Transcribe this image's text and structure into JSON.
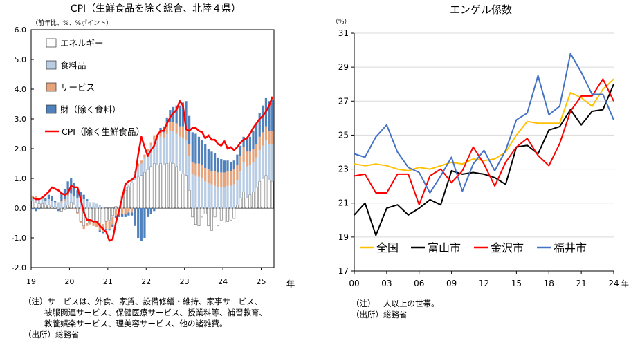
{
  "left": {
    "title": "CPI（生鮮食品を除く総合、北陸４県）",
    "unit": "（前年比、%、%ポイント）",
    "ylim": [
      -2.0,
      6.0
    ],
    "yticks": [
      "6.0",
      "5.0",
      "4.0",
      "3.0",
      "2.0",
      "1.0",
      "0.0",
      "-1.0",
      "-2.0"
    ],
    "xticks": [
      "19",
      "20",
      "21",
      "22",
      "23",
      "24",
      "25"
    ],
    "x_unit": "年",
    "legend": [
      "エネルギー",
      "食料品",
      "サービス",
      "財（除く食料）",
      "CPI（除く生鮮食品）"
    ],
    "notes": [
      "（注）サービスは、外食、家賃、設備修繕・維持、家事サービス、",
      "被服関連サービス、保健医療サービス、授業料等、補習教育、",
      "教養娯楽サービス、理美容サービス、他の諸雑費。",
      "（出所）総務省"
    ]
  },
  "right": {
    "title": "エンゲル係数",
    "unit": "（%）",
    "ylim": [
      17,
      31
    ],
    "yticks": [
      "31",
      "29",
      "27",
      "25",
      "23",
      "21",
      "19",
      "17"
    ],
    "xticks": [
      "00",
      "03",
      "06",
      "09",
      "12",
      "15",
      "18",
      "21",
      "24"
    ],
    "x_unit": "年",
    "notes": [
      "（注）二人以上の世帯。",
      "（出所）総務省"
    ]
  },
  "colors": {
    "energy": "#ffffff",
    "food": "#b8cce4",
    "service": "#e5a47c",
    "goods": "#4f81bd",
    "cpi": "#ff0000",
    "zenkoku": "#ffc000",
    "toyama": "#000000",
    "kanazawa": "#ff0000",
    "fukui": "#4472c4"
  },
  "chart_data": [
    {
      "type": "bar",
      "title": "CPI（生鮮食品を除く総合、北陸４県）",
      "ylabel": "（前年比、%、%ポイント）",
      "ylim": [
        -2.0,
        6.0
      ],
      "x_start": "2019-01",
      "period": "monthly",
      "stacked": true,
      "series": [
        {
          "name": "エネルギー",
          "values": [
            0.25,
            0.2,
            0.15,
            0.15,
            0.1,
            0.1,
            0.05,
            0.0,
            -0.05,
            -0.1,
            -0.05,
            0.1,
            0.2,
            0.1,
            -0.15,
            -0.45,
            -0.6,
            -0.5,
            -0.45,
            -0.45,
            -0.45,
            -0.5,
            -0.55,
            -0.45,
            -0.4,
            -0.25,
            0.05,
            0.25,
            0.4,
            0.6,
            0.7,
            0.85,
            0.95,
            1.05,
            1.1,
            1.2,
            1.3,
            1.4,
            1.5,
            1.45,
            1.5,
            1.45,
            1.5,
            1.55,
            1.5,
            1.4,
            1.25,
            1.15,
            1.1,
            0.6,
            -0.3,
            -0.55,
            -0.6,
            -0.3,
            -0.2,
            -0.6,
            -0.75,
            -0.3,
            -0.6,
            -0.4,
            -0.5,
            -0.45,
            -0.4,
            -0.35,
            0.1,
            0.35,
            0.55,
            0.35,
            0.45,
            0.55,
            0.7,
            0.9,
            1.0,
            1.1,
            0.95,
            0.9
          ]
        },
        {
          "name": "食料品",
          "values": [
            0.1,
            0.15,
            0.15,
            0.15,
            0.15,
            0.2,
            0.2,
            0.2,
            0.2,
            0.2,
            0.25,
            0.3,
            0.3,
            0.3,
            0.35,
            0.35,
            0.3,
            0.25,
            0.2,
            0.2,
            0.15,
            0.1,
            0.05,
            0.0,
            -0.05,
            -0.05,
            -0.05,
            0.0,
            0.05,
            0.1,
            0.1,
            0.15,
            0.25,
            0.35,
            0.4,
            0.5,
            0.6,
            0.7,
            0.8,
            0.85,
            0.9,
            0.9,
            1.0,
            1.05,
            1.1,
            1.1,
            1.15,
            1.2,
            1.2,
            1.15,
            1.15,
            1.1,
            1.05,
            1.0,
            0.9,
            0.85,
            0.8,
            0.75,
            0.7,
            0.7,
            0.7,
            0.75,
            0.75,
            0.8,
            0.85,
            0.9,
            1.0,
            1.05,
            1.0,
            1.0,
            1.0,
            1.05,
            1.1,
            1.2,
            1.2,
            1.25
          ]
        },
        {
          "name": "サービス",
          "values": [
            0.05,
            0.05,
            0.05,
            0.05,
            0.0,
            0.0,
            0.0,
            0.0,
            0.0,
            0.05,
            0.05,
            0.05,
            0.0,
            -0.05,
            -0.05,
            -0.05,
            -0.1,
            -0.1,
            -0.1,
            -0.15,
            -0.2,
            -0.25,
            -0.25,
            -0.25,
            -0.25,
            -0.25,
            -0.2,
            -0.2,
            -0.2,
            -0.2,
            -0.15,
            -0.15,
            0.05,
            0.1,
            0.1,
            0.1,
            0.1,
            0.1,
            0.15,
            0.15,
            0.2,
            0.2,
            0.25,
            0.3,
            0.3,
            0.35,
            0.35,
            0.4,
            0.4,
            0.4,
            0.4,
            0.4,
            0.45,
            0.45,
            0.45,
            0.45,
            0.45,
            0.5,
            0.5,
            0.5,
            0.5,
            0.5,
            0.5,
            0.5,
            0.5,
            0.5,
            0.5,
            0.5,
            0.45,
            0.45,
            0.45,
            0.45,
            0.45,
            0.45,
            0.45,
            0.45
          ]
        },
        {
          "name": "財（除く食料）",
          "values": [
            -0.05,
            -0.1,
            -0.05,
            0.05,
            0.1,
            0.15,
            0.15,
            0.05,
            -0.05,
            0.25,
            0.35,
            0.45,
            0.5,
            0.45,
            0.25,
            0.2,
            0.15,
            0.05,
            0.0,
            0.0,
            0.0,
            -0.05,
            -0.05,
            -0.05,
            -0.05,
            -0.1,
            -0.1,
            -0.1,
            -0.1,
            -0.1,
            -0.1,
            -0.1,
            -0.6,
            -1.0,
            -1.1,
            -1.0,
            -0.3,
            -0.2,
            -0.1,
            0.0,
            0.1,
            0.2,
            0.3,
            0.4,
            0.5,
            0.6,
            0.7,
            0.8,
            0.9,
            0.95,
            1.0,
            1.0,
            0.9,
            0.85,
            0.8,
            0.7,
            0.65,
            0.6,
            0.5,
            0.45,
            0.4,
            0.35,
            0.3,
            0.3,
            0.35,
            0.35,
            0.35,
            0.45,
            0.5,
            0.6,
            0.7,
            0.8,
            0.9,
            0.95,
            1.0,
            1.05
          ]
        },
        {
          "name": "CPI（除く生鮮食品）",
          "type": "line",
          "values": [
            0.35,
            0.3,
            0.3,
            0.35,
            0.45,
            0.55,
            0.7,
            0.65,
            0.6,
            0.5,
            0.45,
            0.5,
            0.75,
            0.7,
            0.7,
            0.3,
            -0.15,
            -0.4,
            -0.4,
            -0.45,
            -0.45,
            -0.6,
            -0.7,
            -0.8,
            -1.1,
            -1.05,
            -0.5,
            -0.1,
            0.35,
            0.8,
            0.9,
            0.95,
            1.05,
            1.8,
            2.4,
            2.05,
            1.75,
            1.95,
            2.1,
            2.45,
            2.6,
            2.6,
            2.85,
            3.05,
            3.2,
            3.3,
            3.6,
            3.45,
            2.65,
            2.6,
            2.7,
            2.7,
            2.6,
            2.55,
            2.35,
            2.45,
            2.3,
            2.3,
            2.15,
            2.1,
            2.25,
            2.0,
            2.05,
            1.95,
            2.05,
            2.2,
            2.3,
            2.35,
            2.5,
            2.7,
            2.85,
            3.0,
            3.1,
            3.25,
            3.45,
            3.75
          ]
        }
      ]
    },
    {
      "type": "line",
      "title": "エンゲル係数",
      "ylabel": "（%）",
      "ylim": [
        17,
        31
      ],
      "x": [
        "00",
        "01",
        "02",
        "03",
        "04",
        "05",
        "06",
        "07",
        "08",
        "09",
        "10",
        "11",
        "12",
        "13",
        "14",
        "15",
        "16",
        "17",
        "18",
        "19",
        "20",
        "21",
        "22",
        "23",
        "24"
      ],
      "series": [
        {
          "name": "全国",
          "values": [
            23.3,
            23.2,
            23.3,
            23.2,
            23.0,
            22.9,
            23.1,
            23.0,
            23.2,
            23.4,
            23.3,
            23.6,
            23.5,
            23.6,
            24.0,
            25.0,
            25.8,
            25.7,
            25.7,
            25.7,
            27.5,
            27.2,
            26.7,
            27.7,
            28.3
          ]
        },
        {
          "name": "富山市",
          "values": [
            20.3,
            21.0,
            19.1,
            20.7,
            20.9,
            20.3,
            20.7,
            21.2,
            20.9,
            22.9,
            22.7,
            22.8,
            22.7,
            22.5,
            22.1,
            24.3,
            24.4,
            23.9,
            25.3,
            25.5,
            26.5,
            25.6,
            26.4,
            26.5,
            28.0
          ]
        },
        {
          "name": "金沢市",
          "values": [
            22.6,
            22.7,
            21.6,
            21.6,
            22.7,
            22.7,
            20.9,
            22.6,
            23.0,
            22.2,
            22.9,
            24.3,
            23.3,
            22.0,
            23.4,
            24.3,
            24.8,
            23.8,
            23.2,
            24.5,
            26.4,
            27.3,
            27.3,
            28.3,
            27.0
          ]
        },
        {
          "name": "福井市",
          "values": [
            23.9,
            23.7,
            24.9,
            25.6,
            24.0,
            23.1,
            22.8,
            21.6,
            22.6,
            23.7,
            21.7,
            23.3,
            24.1,
            22.9,
            24.1,
            25.9,
            26.3,
            28.5,
            26.2,
            26.7,
            29.8,
            28.7,
            27.4,
            27.4,
            25.9
          ]
        }
      ]
    }
  ]
}
